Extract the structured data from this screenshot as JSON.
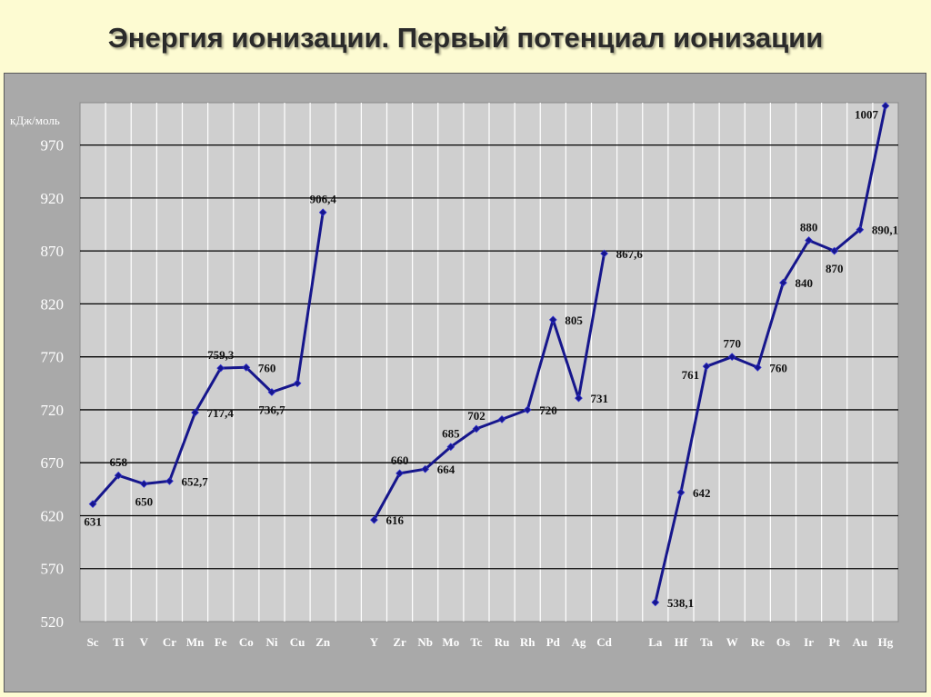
{
  "slide": {
    "title": "Энергия ионизации. Первый потенциал ионизации"
  },
  "colors": {
    "background": "#fdfbd2",
    "frame": "#a9a9a9",
    "plot_area": "#cfcfcf",
    "gridline": "#000000",
    "series_line": "#16168c",
    "axis_text": "#ffffff",
    "label_text": "#111111"
  },
  "chart_data": {
    "type": "line",
    "title": "",
    "ylabel": "кДж/моль",
    "xlabel": "",
    "ylim": [
      520,
      1010
    ],
    "yticks": [
      520,
      570,
      620,
      670,
      720,
      770,
      820,
      870,
      920,
      970
    ],
    "ytick_labels": [
      "520",
      "570",
      "620",
      "670",
      "720",
      "770",
      "820",
      "870",
      "920",
      "970"
    ],
    "grid": true,
    "categories": [
      "Sc",
      "Ti",
      "V",
      "Cr",
      "Mn",
      "Fe",
      "Co",
      "Ni",
      "Cu",
      "Zn",
      "",
      "Y",
      "Zr",
      "Nb",
      "Mo",
      "Tc",
      "Ru",
      "Rh",
      "Pd",
      "Ag",
      "Cd",
      "",
      "La",
      "Hf",
      "Ta",
      "W",
      "Re",
      "Os",
      "Ir",
      "Pt",
      "Au",
      "Hg"
    ],
    "category_labels": [
      "Sc",
      "Ti",
      "V",
      "Cr",
      "Mn",
      "Fe",
      "Co",
      "Ni",
      "Cu",
      "Zn",
      "",
      "Y",
      "Zr",
      "Nb",
      "Mo",
      "Tc",
      "Ru",
      "Rh",
      "Pd",
      "Ag",
      "Cd",
      "",
      "La",
      "Hf",
      "Ta",
      "W",
      "Re",
      "Os",
      "Ir",
      "Pt",
      "Au",
      "Hg"
    ],
    "series": [
      {
        "values": [
          631,
          658,
          650,
          652.7,
          717.4,
          759.3,
          760,
          736.7,
          745,
          906.4,
          null,
          616,
          660,
          664,
          685,
          702,
          711,
          720,
          805,
          731,
          867.6,
          null,
          538.1,
          642,
          761,
          770,
          760,
          840,
          880,
          870,
          890.1,
          1007
        ],
        "labels": [
          "631",
          "658",
          "650",
          "652,7",
          "717,4",
          "759,3",
          "760",
          "736,7",
          "",
          "906,4",
          "",
          "616",
          "660",
          "664",
          "685",
          "702",
          "",
          "720",
          "805",
          "731",
          "867,6",
          "",
          "538,1",
          "642",
          "761",
          "770",
          "760",
          "840",
          "880",
          "870",
          "890,1",
          "1007"
        ],
        "label_pos": [
          "b",
          "t",
          "b",
          "r",
          "r",
          "t",
          "r",
          "b",
          "",
          "t",
          "",
          "r",
          "t",
          "r",
          "t",
          "t",
          "",
          "r",
          "r",
          "r",
          "r",
          "",
          "r",
          "r",
          "l",
          "t",
          "r",
          "r",
          "t",
          "b",
          "r",
          "l"
        ]
      }
    ]
  }
}
